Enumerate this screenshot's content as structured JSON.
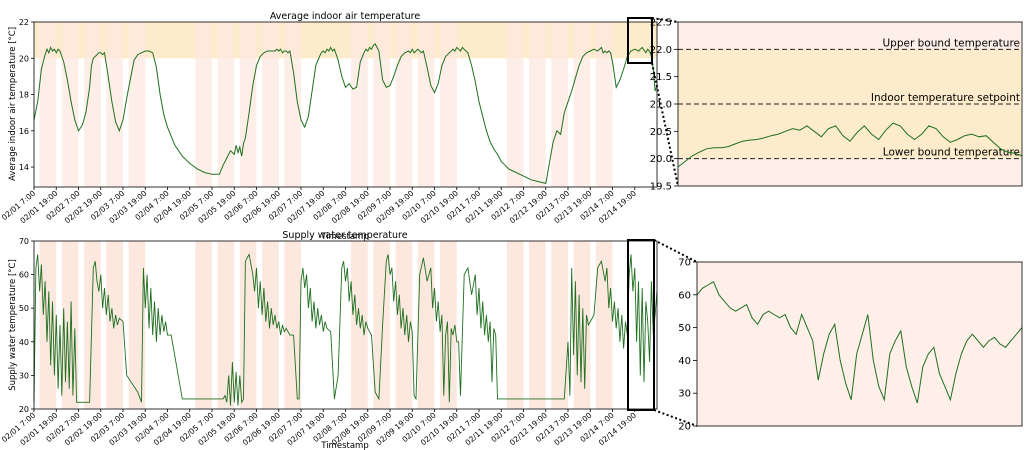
{
  "colors": {
    "line": "#1f6f1f",
    "comfort_band": "#fdeccb",
    "occupied_shade": "#fde8e0",
    "frame": "#000000",
    "dash": "#222222"
  },
  "x_tick_labels": [
    "02/01 7:00",
    "02/01 19:00",
    "02/02 7:00",
    "02/02 19:00",
    "02/03 7:00",
    "02/03 19:00",
    "02/04 7:00",
    "02/04 19:00",
    "02/05 7:00",
    "02/05 19:00",
    "02/06 7:00",
    "02/06 19:00",
    "02/07 7:00",
    "02/07 19:00",
    "02/08 7:00",
    "02/08 19:00",
    "02/09 7:00",
    "02/09 19:00",
    "02/10 7:00",
    "02/10 19:00",
    "02/11 7:00",
    "02/11 19:00",
    "02/12 7:00",
    "02/12 19:00",
    "02/13 7:00",
    "02/13 19:00",
    "02/14 7:00",
    "02/14 19:00"
  ],
  "chart_data": [
    {
      "id": "indoor-main",
      "type": "line",
      "title": "Average indoor air temperature",
      "xlabel": "Timestamp",
      "ylabel": "Average indoor air temperature [°C]",
      "ylim": [
        12.9,
        22
      ],
      "yticks": [
        14,
        16,
        18,
        20,
        22
      ],
      "comfort_band": [
        20,
        22
      ],
      "occupied_days": [
        0,
        1,
        2,
        3,
        4,
        7,
        8,
        9,
        10,
        11,
        14,
        15,
        16,
        17,
        18,
        21,
        22,
        23,
        24,
        25
      ],
      "x": [
        0,
        2,
        4,
        6,
        7,
        8,
        9,
        10,
        11,
        12,
        13,
        14,
        16,
        18,
        20,
        22,
        24,
        26,
        28,
        30,
        31,
        32,
        33,
        34,
        35,
        36,
        37,
        38,
        40,
        42,
        44,
        46,
        48,
        50,
        54,
        56,
        58,
        60,
        62,
        64,
        66,
        68,
        70,
        72,
        76,
        80,
        84,
        88,
        92,
        96,
        98,
        100,
        102,
        104,
        106,
        108,
        109,
        110,
        111,
        112,
        113,
        114,
        116,
        118,
        120,
        122,
        124,
        126,
        128,
        130,
        131,
        132,
        133,
        134,
        135,
        136,
        137,
        138,
        140,
        142,
        144,
        146,
        148,
        150,
        152,
        154,
        155,
        156,
        157,
        158,
        159,
        160,
        161,
        162,
        164,
        166,
        168,
        170,
        172,
        174,
        176,
        178,
        179,
        180,
        181,
        182,
        183,
        184,
        185,
        186,
        188,
        190,
        192,
        194,
        196,
        198,
        200,
        202,
        203,
        204,
        205,
        206,
        207,
        208,
        209,
        210,
        212,
        214,
        216,
        218,
        220,
        222,
        224,
        226,
        227,
        228,
        229,
        230,
        231,
        232,
        233,
        234,
        236,
        238,
        240,
        242,
        244,
        246,
        248,
        250,
        251,
        252,
        254,
        256,
        260,
        264,
        268,
        272,
        276,
        280,
        282,
        284,
        286,
        288,
        290,
        292,
        294,
        296,
        298,
        300,
        302,
        304,
        306,
        307,
        308,
        309,
        310,
        311,
        312,
        313,
        314,
        316,
        318,
        320,
        322,
        324,
        326,
        328,
        330,
        331,
        332,
        333,
        334,
        335,
        336
      ],
      "y": [
        16.6,
        17.6,
        19.4,
        20.2,
        20.5,
        20.3,
        20.6,
        20.4,
        20.5,
        20.3,
        20.5,
        20.4,
        19.8,
        18.8,
        17.6,
        16.6,
        16.0,
        16.3,
        17.0,
        18.4,
        19.6,
        20.0,
        20.1,
        20.2,
        20.3,
        20.3,
        20.2,
        20.3,
        19.0,
        17.6,
        16.5,
        16.0,
        16.6,
        17.8,
        19.9,
        20.2,
        20.3,
        20.4,
        20.4,
        20.3,
        19.5,
        18.0,
        16.9,
        16.2,
        15.2,
        14.6,
        14.2,
        13.9,
        13.7,
        13.6,
        13.6,
        13.6,
        14.1,
        14.5,
        14.9,
        14.7,
        15.2,
        14.8,
        15.1,
        14.6,
        15.3,
        15.6,
        17.0,
        18.5,
        19.6,
        20.1,
        20.3,
        20.4,
        20.4,
        20.4,
        20.5,
        20.4,
        20.5,
        20.3,
        20.4,
        20.4,
        20.3,
        20.4,
        19.2,
        17.6,
        16.6,
        16.2,
        16.8,
        18.2,
        19.6,
        20.1,
        20.3,
        20.4,
        20.3,
        20.5,
        20.4,
        20.6,
        20.4,
        20.5,
        19.9,
        19.0,
        18.4,
        18.6,
        18.3,
        18.4,
        19.8,
        20.3,
        20.5,
        20.4,
        20.6,
        20.5,
        20.7,
        20.8,
        20.6,
        20.4,
        18.8,
        18.4,
        18.5,
        19.0,
        19.6,
        20.1,
        20.3,
        20.4,
        20.3,
        20.5,
        20.3,
        20.4,
        20.5,
        20.4,
        20.3,
        20.4,
        19.5,
        18.5,
        18.1,
        18.6,
        19.6,
        20.1,
        20.3,
        20.5,
        20.4,
        20.6,
        20.5,
        20.4,
        20.6,
        20.5,
        20.4,
        20.3,
        19.6,
        18.7,
        17.6,
        16.8,
        16.0,
        15.4,
        15.0,
        14.7,
        14.5,
        14.3,
        14.1,
        13.9,
        13.7,
        13.5,
        13.3,
        13.2,
        13.1,
        15.4,
        16.0,
        15.8,
        17.0,
        17.6,
        18.2,
        18.9,
        19.6,
        20.1,
        20.3,
        20.4,
        20.5,
        20.4,
        20.6,
        20.3,
        20.4,
        20.3,
        20.4,
        20.3,
        19.8,
        19.1,
        18.4,
        18.8,
        19.4,
        20.1,
        20.4,
        20.5,
        20.4,
        20.6,
        20.3,
        20.5,
        20.4,
        20.1,
        19.4,
        18.2,
        18.5
      ]
    },
    {
      "id": "indoor-zoom",
      "type": "line",
      "title": "",
      "ylim": [
        19.5,
        22.5
      ],
      "yticks": [
        19.5,
        20.0,
        20.5,
        21.0,
        21.5,
        22.0,
        22.5
      ],
      "comfort_band": [
        20,
        22
      ],
      "reference_lines": [
        {
          "value": 22.0,
          "label": "Upper bound temperature"
        },
        {
          "value": 21.0,
          "label": "Indoor temperature setpoint"
        },
        {
          "value": 20.0,
          "label": "Lower bound temperature"
        }
      ],
      "y": [
        19.85,
        19.95,
        20.05,
        20.12,
        20.18,
        20.2,
        20.2,
        20.22,
        20.27,
        20.32,
        20.34,
        20.35,
        20.38,
        20.42,
        20.45,
        20.5,
        20.55,
        20.52,
        20.6,
        20.5,
        20.4,
        20.55,
        20.6,
        20.42,
        20.32,
        20.48,
        20.6,
        20.45,
        20.35,
        20.52,
        20.65,
        20.6,
        20.45,
        20.35,
        20.45,
        20.6,
        20.55,
        20.4,
        20.3,
        20.35,
        20.42,
        20.45,
        20.4,
        20.42,
        20.3,
        20.18,
        20.12,
        20.1,
        20.05
      ]
    },
    {
      "id": "supply-main",
      "type": "line",
      "title": "Supply water temperature",
      "xlabel": "Timestamp",
      "ylabel": "Supply water temperature [°C]",
      "ylim": [
        20,
        70
      ],
      "yticks": [
        20,
        30,
        40,
        50,
        60,
        70
      ],
      "occupied_days": [
        0,
        1,
        2,
        3,
        4,
        7,
        8,
        9,
        10,
        11,
        14,
        15,
        16,
        17,
        18,
        21,
        22,
        23,
        24,
        25
      ],
      "x": [
        0,
        1,
        2,
        3,
        4,
        5,
        6,
        7,
        8,
        9,
        10,
        11,
        12,
        13,
        14,
        15,
        16,
        17,
        18,
        19,
        20,
        21,
        22,
        23,
        24,
        26,
        28,
        30,
        32,
        33,
        34,
        35,
        36,
        37,
        38,
        39,
        40,
        41,
        42,
        43,
        44,
        45,
        46,
        48,
        50,
        56,
        58,
        59,
        60,
        61,
        62,
        63,
        64,
        65,
        66,
        67,
        68,
        69,
        70,
        71,
        72,
        74,
        80,
        90,
        100,
        102,
        103,
        104,
        105,
        106,
        107,
        108,
        109,
        110,
        111,
        112,
        113,
        114,
        116,
        118,
        119,
        120,
        121,
        122,
        123,
        124,
        125,
        126,
        127,
        128,
        129,
        130,
        131,
        132,
        133,
        134,
        135,
        136,
        138,
        140,
        142,
        143,
        144,
        145,
        146,
        147,
        148,
        149,
        150,
        151,
        152,
        153,
        154,
        155,
        156,
        157,
        158,
        160,
        162,
        164,
        166,
        167,
        168,
        169,
        170,
        171,
        172,
        173,
        174,
        175,
        176,
        177,
        178,
        179,
        180,
        181,
        182,
        184,
        186,
        188,
        190,
        191,
        192,
        193,
        194,
        195,
        196,
        197,
        198,
        199,
        200,
        201,
        202,
        203,
        204,
        205,
        206,
        208,
        210,
        212,
        214,
        215,
        216,
        217,
        218,
        219,
        220,
        221,
        222,
        223,
        224,
        225,
        226,
        227,
        228,
        229,
        230,
        232,
        234,
        236,
        238,
        239,
        240,
        241,
        242,
        243,
        244,
        245,
        246,
        247,
        248,
        249,
        250,
        252,
        270,
        286,
        288,
        289,
        290,
        291,
        292,
        293,
        294,
        295,
        296,
        297,
        298,
        299,
        300,
        302,
        304,
        306,
        308,
        309,
        310,
        311,
        312,
        313,
        314,
        315,
        316,
        317,
        318,
        319,
        320,
        321,
        322,
        323,
        324,
        325,
        326,
        327,
        328,
        329,
        330,
        331,
        332,
        333,
        334,
        335,
        336
      ],
      "y": [
        22,
        62,
        66,
        55,
        63,
        48,
        58,
        40,
        55,
        33,
        52,
        30,
        48,
        26,
        45,
        24,
        50,
        28,
        46,
        26,
        52,
        24,
        44,
        22,
        22,
        22,
        22,
        22,
        62,
        64,
        58,
        55,
        60,
        50,
        56,
        48,
        54,
        46,
        50,
        44,
        48,
        45,
        47,
        46,
        30,
        25,
        22,
        62,
        50,
        60,
        44,
        56,
        42,
        52,
        40,
        50,
        42,
        48,
        43,
        46,
        42,
        42,
        23,
        23,
        23,
        23,
        24,
        22,
        30,
        21,
        34,
        22,
        31,
        21,
        30,
        22,
        23,
        64,
        66,
        60,
        55,
        62,
        50,
        58,
        48,
        56,
        46,
        52,
        44,
        50,
        45,
        48,
        44,
        46,
        42,
        45,
        43,
        44,
        42,
        42,
        23,
        23,
        58,
        62,
        56,
        60,
        50,
        56,
        46,
        52,
        44,
        50,
        45,
        48,
        43,
        46,
        44,
        43,
        23,
        30,
        62,
        64,
        58,
        62,
        52,
        58,
        48,
        54,
        45,
        50,
        44,
        48,
        42,
        46,
        44,
        43,
        42,
        25,
        23,
        45,
        64,
        66,
        60,
        62,
        52,
        58,
        48,
        54,
        44,
        50,
        42,
        48,
        40,
        46,
        43,
        24,
        23,
        60,
        65,
        58,
        62,
        50,
        56,
        46,
        52,
        43,
        48,
        24,
        42,
        46,
        22,
        44,
        42,
        45,
        40,
        40,
        24,
        60,
        62,
        54,
        60,
        48,
        56,
        44,
        52,
        42,
        48,
        40,
        46,
        28,
        44,
        42,
        23,
        23,
        23,
        23,
        40,
        24,
        62,
        36,
        58,
        30,
        54,
        28,
        50,
        26,
        48,
        45,
        46,
        48,
        62,
        64,
        58,
        62,
        50,
        56,
        46,
        52,
        44,
        50,
        40,
        48,
        38,
        46,
        42,
        60,
        66,
        55,
        62,
        40,
        58,
        30,
        56,
        28,
        52,
        46,
        34,
        58,
        42,
        48,
        55
      ]
    },
    {
      "id": "supply-zoom",
      "type": "line",
      "title": "",
      "ylim": [
        20,
        70
      ],
      "yticks": [
        20,
        30,
        40,
        50,
        60,
        70
      ],
      "y": [
        60,
        62,
        63,
        64,
        60,
        58,
        56,
        55,
        56,
        57,
        53,
        51,
        54,
        55,
        54,
        53,
        54,
        50,
        48,
        54,
        50,
        46,
        34,
        42,
        48,
        51,
        40,
        33,
        28,
        42,
        48,
        54,
        40,
        32,
        28,
        42,
        46,
        49,
        38,
        32,
        27,
        38,
        42,
        44,
        36,
        32,
        28,
        36,
        42,
        46,
        48,
        46,
        44,
        46,
        47,
        45,
        44,
        46,
        48,
        50
      ]
    }
  ]
}
